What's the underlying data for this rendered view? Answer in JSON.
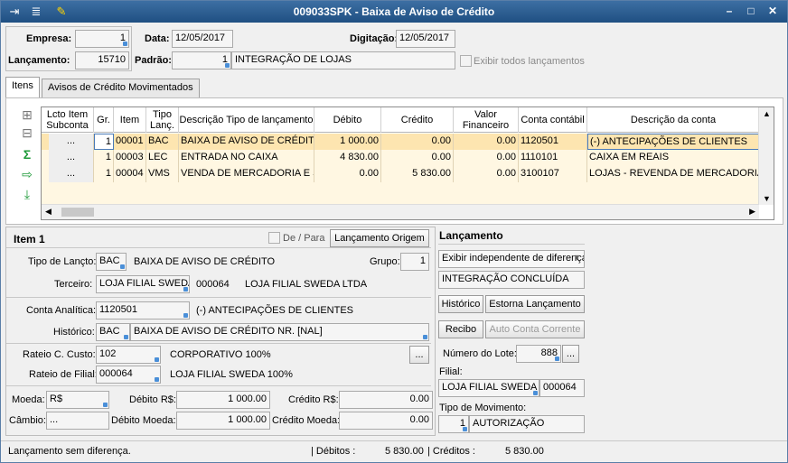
{
  "window": {
    "title": "009033SPK - Baixa de Aviso de Crédito",
    "min": "–",
    "max": "□",
    "close": "✕"
  },
  "header": {
    "empresa_label": "Empresa:",
    "empresa_value": "1",
    "data_label": "Data:",
    "data_value": "12/05/2017",
    "digitacao_label": "Digitação:",
    "digitacao_value": "12/05/2017",
    "lancamento_label": "Lançamento:",
    "lancamento_value": "15710",
    "padrao_label": "Padrão:",
    "padrao_code": "1",
    "padrao_desc": "INTEGRAÇÃO DE LOJAS",
    "exibir_todos_label": "Exibir todos lançamentos"
  },
  "tabs": [
    {
      "label": "Itens"
    },
    {
      "label": "Avisos de Crédito Movimentados"
    }
  ],
  "grid": {
    "columns": [
      "Lcto Item Subconta",
      "Gr.",
      "Item",
      "Tipo Lanç.",
      "Descrição Tipo de lançamento",
      "Débito",
      "Crédito",
      "Valor Financeiro",
      "Conta contábil",
      "Descrição da conta"
    ],
    "rows": [
      {
        "btn": "...",
        "gr": "1",
        "item": "00001",
        "tipo": "BAC",
        "desc": "BAIXA DE AVISO DE CRÉDITO",
        "debito": "1 000.00",
        "credito": "0.00",
        "vf": "0.00",
        "conta": "1120501",
        "desc_conta": "(-) ANTECIPAÇÕES DE CLIENTES"
      },
      {
        "btn": "...",
        "gr": "1",
        "item": "00003",
        "tipo": "LEC",
        "desc": "ENTRADA NO CAIXA",
        "debito": "4 830.00",
        "credito": "0.00",
        "vf": "0.00",
        "conta": "1110101",
        "desc_conta": "CAIXA EM REAIS"
      },
      {
        "btn": "...",
        "gr": "1",
        "item": "00004",
        "tipo": "VMS",
        "desc": "VENDA DE MERCADORIA E SERVIÇOS",
        "debito": "0.00",
        "credito": "5 830.00",
        "vf": "0.00",
        "conta": "3100107",
        "desc_conta": "LOJAS - REVENDA DE MERCADORIAS"
      }
    ]
  },
  "item": {
    "title": "Item 1",
    "de_para_label": "De / Para",
    "lanc_origem_button": "Lançamento Origem",
    "tipo_label": "Tipo de Lançto:",
    "tipo_code": "BAC",
    "tipo_desc": "BAIXA DE AVISO DE CRÉDITO",
    "grupo_label": "Grupo:",
    "grupo_value": "1",
    "terceiro_label": "Terceiro:",
    "terceiro_value": "LOJA FILIAL SWEDA",
    "terceiro_code": "000064",
    "terceiro_desc": "LOJA FILIAL SWEDA LTDA",
    "conta_label": "Conta Analítica:",
    "conta_value": "1120501",
    "conta_desc": "(-) ANTECIPAÇÕES DE CLIENTES",
    "historico_label": "Histórico:",
    "historico_code": "BAC",
    "historico_desc": "BAIXA DE AVISO DE CRÉDITO NR. [NAL]",
    "rateio_cc_label": "Rateio C. Custo:",
    "rateio_cc_value": "102",
    "rateio_cc_desc": "CORPORATIVO 100%",
    "rateio_cc_btn": "...",
    "rateio_filial_label": "Rateio de Filial:",
    "rateio_filial_value": "000064",
    "rateio_filial_desc": "LOJA FILIAL SWEDA 100%",
    "moeda_label": "Moeda:",
    "moeda_value": "R$",
    "debito_label": "Débito R$:",
    "debito_value": "1 000.00",
    "credito_label": "Crédito R$:",
    "credito_value": "0.00",
    "cambio_label": "Câmbio:",
    "cambio_value": "...",
    "debito_moeda_label": "Débito Moeda:",
    "debito_moeda_value": "1 000.00",
    "credito_moeda_label": "Crédito Moeda:",
    "credito_moeda_value": "0.00"
  },
  "lancamento": {
    "title": "Lançamento",
    "exibir_select": "Exibir independente de diferença",
    "status": "INTEGRAÇÃO CONCLUÍDA",
    "historico_btn": "Histórico",
    "estorna_btn": "Estorna Lançamento",
    "recibo_btn": "Recibo",
    "auto_conta_btn": "Auto Conta Corrente",
    "lote_label": "Número do Lote:",
    "lote_value": "888",
    "lote_btn": "...",
    "filial_label": "Filial:",
    "filial_value": "LOJA FILIAL SWEDA",
    "filial_code": "000064",
    "tipo_mov_label": "Tipo de Movimento:",
    "tipo_mov_code": "1",
    "tipo_mov_desc": "AUTORIZAÇÃO"
  },
  "statusbar": {
    "message": "Lançamento sem diferença.",
    "debitos_label": "| Débitos :",
    "debitos_value": "5 830.00",
    "creditos_label": "| Créditos :",
    "creditos_value": "5 830.00"
  }
}
